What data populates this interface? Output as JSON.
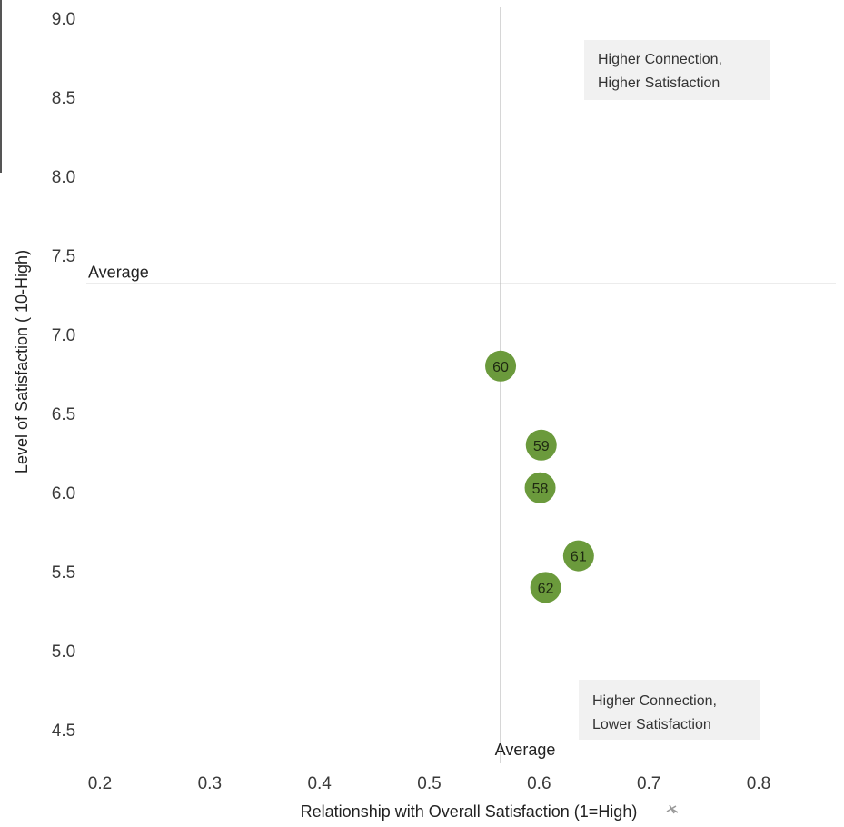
{
  "chart_data": {
    "type": "scatter",
    "title": "",
    "xlabel": "Relationship with Overall Satisfaction (1=High)",
    "ylabel": "Level of Satisfaction ( 10-High)",
    "xlim": [
      0.2,
      0.8
    ],
    "ylim": [
      4.5,
      9.0
    ],
    "x_ticks": [
      "0.2",
      "0.3",
      "0.4",
      "0.5",
      "0.6",
      "0.7",
      "0.8"
    ],
    "y_ticks": [
      "9.0",
      "8.5",
      "8.0",
      "7.5",
      "7.0",
      "6.5",
      "6.0",
      "5.5",
      "5.0",
      "4.5"
    ],
    "grid": false,
    "reference_lines": {
      "x_average": {
        "value": 0.565,
        "label": "Average"
      },
      "y_average": {
        "value": 7.32,
        "label": "Average"
      }
    },
    "quadrant_labels": {
      "top_right": [
        "Higher Connection,",
        "Higher Satisfaction"
      ],
      "bottom_right": [
        "Higher Connection,",
        "Lower Satisfaction"
      ]
    },
    "points": [
      {
        "label": "60",
        "x": 0.565,
        "y": 6.8
      },
      {
        "label": "59",
        "x": 0.602,
        "y": 6.3
      },
      {
        "label": "58",
        "x": 0.601,
        "y": 6.03
      },
      {
        "label": "61",
        "x": 0.636,
        "y": 5.6
      },
      {
        "label": "62",
        "x": 0.606,
        "y": 5.4
      }
    ],
    "point_color": "#6b9a3c"
  }
}
